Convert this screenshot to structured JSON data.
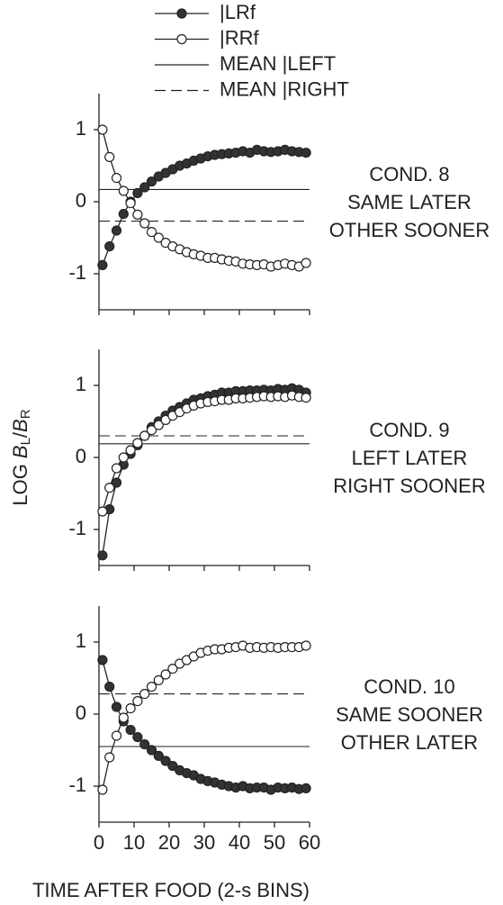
{
  "ylabel_parts": [
    "LOG",
    "B",
    "L",
    "/",
    "B",
    "R"
  ],
  "xlabel": "TIME AFTER FOOD (2-s BINS)",
  "chart_data": [
    {
      "type": "line",
      "annotation": [
        "COND. 8",
        "SAME LATER",
        "OTHER SOONER"
      ],
      "x": [
        1,
        3,
        5,
        7,
        9,
        11,
        13,
        15,
        17,
        19,
        21,
        23,
        25,
        27,
        29,
        31,
        33,
        35,
        37,
        39,
        41,
        43,
        45,
        47,
        49,
        51,
        53,
        55,
        57,
        59
      ],
      "series": [
        {
          "name": "|LRf",
          "color": "#333333",
          "values": [
            -0.88,
            -0.62,
            -0.4,
            -0.17,
            0.0,
            0.12,
            0.2,
            0.28,
            0.35,
            0.4,
            0.45,
            0.5,
            0.53,
            0.57,
            0.6,
            0.63,
            0.65,
            0.66,
            0.67,
            0.68,
            0.7,
            0.68,
            0.72,
            0.7,
            0.69,
            0.7,
            0.72,
            0.7,
            0.69,
            0.68
          ]
        },
        {
          "name": "|RRf",
          "color": "#ffffff",
          "values": [
            1.0,
            0.62,
            0.33,
            0.15,
            -0.02,
            -0.18,
            -0.3,
            -0.42,
            -0.5,
            -0.57,
            -0.62,
            -0.66,
            -0.7,
            -0.73,
            -0.75,
            -0.78,
            -0.78,
            -0.8,
            -0.82,
            -0.83,
            -0.86,
            -0.87,
            -0.88,
            -0.87,
            -0.9,
            -0.88,
            -0.86,
            -0.88,
            -0.9,
            -0.85
          ]
        }
      ],
      "reference_lines": [
        {
          "name": "MEAN |LEFT",
          "value": 0.17,
          "dashed": false
        },
        {
          "name": "MEAN |RIGHT",
          "value": -0.27,
          "dashed": true
        }
      ],
      "xlim": [
        0,
        60
      ],
      "xticks": [
        0,
        10,
        20,
        30,
        40,
        50,
        60
      ],
      "ylim": [
        -1.5,
        1.5
      ],
      "yticks": [
        -1,
        0,
        1
      ]
    },
    {
      "type": "line",
      "annotation": [
        "COND. 9",
        "LEFT LATER",
        "RIGHT SOONER"
      ],
      "x": [
        1,
        3,
        5,
        7,
        9,
        11,
        13,
        15,
        17,
        19,
        21,
        23,
        25,
        27,
        29,
        31,
        33,
        35,
        37,
        39,
        41,
        43,
        45,
        47,
        49,
        51,
        53,
        55,
        57,
        59
      ],
      "series": [
        {
          "color": "#333333",
          "values": [
            -1.36,
            -0.72,
            -0.35,
            -0.1,
            0.05,
            0.17,
            0.3,
            0.42,
            0.5,
            0.58,
            0.65,
            0.7,
            0.75,
            0.8,
            0.82,
            0.85,
            0.87,
            0.9,
            0.9,
            0.92,
            0.92,
            0.93,
            0.93,
            0.94,
            0.93,
            0.95,
            0.94,
            0.96,
            0.94,
            0.9
          ]
        },
        {
          "color": "#ffffff",
          "values": [
            -0.75,
            -0.42,
            -0.15,
            0.0,
            0.1,
            0.2,
            0.3,
            0.38,
            0.45,
            0.52,
            0.58,
            0.63,
            0.68,
            0.72,
            0.75,
            0.77,
            0.78,
            0.8,
            0.8,
            0.82,
            0.82,
            0.83,
            0.84,
            0.85,
            0.84,
            0.85,
            0.84,
            0.86,
            0.84,
            0.83
          ]
        }
      ],
      "reference_lines": [
        {
          "value": 0.19,
          "dashed": false
        },
        {
          "value": 0.3,
          "dashed": true
        }
      ],
      "xlim": [
        0,
        60
      ],
      "xticks": [
        0,
        10,
        20,
        30,
        40,
        50,
        60
      ],
      "ylim": [
        -1.5,
        1.5
      ],
      "yticks": [
        -1,
        0,
        1
      ]
    },
    {
      "type": "line",
      "annotation": [
        "COND. 10",
        "SAME SOONER",
        "OTHER LATER"
      ],
      "x": [
        1,
        3,
        5,
        7,
        9,
        11,
        13,
        15,
        17,
        19,
        21,
        23,
        25,
        27,
        29,
        31,
        33,
        35,
        37,
        39,
        41,
        43,
        45,
        47,
        49,
        51,
        53,
        55,
        57,
        59
      ],
      "series": [
        {
          "color": "#333333",
          "values": [
            0.75,
            0.38,
            0.1,
            -0.1,
            -0.22,
            -0.32,
            -0.42,
            -0.5,
            -0.58,
            -0.65,
            -0.72,
            -0.78,
            -0.82,
            -0.85,
            -0.9,
            -0.93,
            -0.95,
            -0.98,
            -1.0,
            -1.02,
            -1.0,
            -1.03,
            -1.02,
            -1.02,
            -1.05,
            -1.02,
            -1.03,
            -1.02,
            -1.04,
            -1.03
          ]
        },
        {
          "color": "#ffffff",
          "values": [
            -1.05,
            -0.6,
            -0.3,
            -0.05,
            0.08,
            0.18,
            0.28,
            0.38,
            0.47,
            0.55,
            0.63,
            0.7,
            0.75,
            0.8,
            0.85,
            0.88,
            0.9,
            0.9,
            0.92,
            0.93,
            0.95,
            0.92,
            0.93,
            0.92,
            0.93,
            0.92,
            0.93,
            0.93,
            0.93,
            0.95
          ]
        }
      ],
      "reference_lines": [
        {
          "value": -0.45,
          "dashed": false
        },
        {
          "value": 0.28,
          "dashed": true
        }
      ],
      "xlim": [
        0,
        60
      ],
      "xticks": [
        0,
        10,
        20,
        30,
        40,
        50,
        60
      ],
      "ylim": [
        -1.5,
        1.5
      ],
      "yticks": [
        -1,
        0,
        1
      ]
    }
  ]
}
